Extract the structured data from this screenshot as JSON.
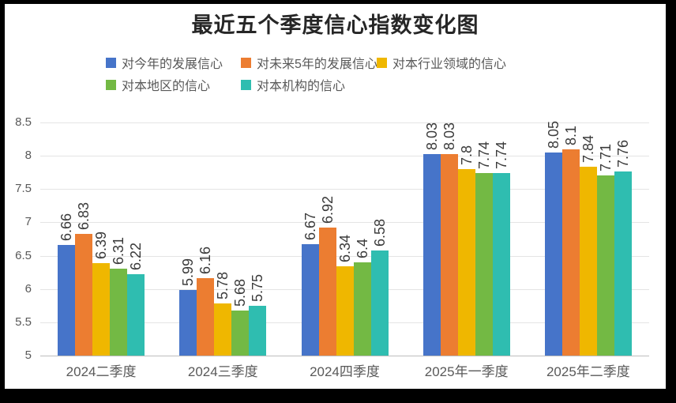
{
  "chart_data": {
    "type": "bar",
    "title": "最近五个季度信心指数变化图",
    "categories": [
      "2024二季度",
      "2024三季度",
      "2024四季度",
      "2025年一季度",
      "2025年二季度"
    ],
    "series": [
      {
        "name": "对今年的发展信心",
        "color": "#4674c9",
        "values": [
          6.66,
          5.99,
          6.67,
          8.03,
          8.05
        ]
      },
      {
        "name": "对未来5年的发展信心",
        "color": "#ec7d31",
        "values": [
          6.83,
          6.16,
          6.92,
          8.03,
          8.1
        ]
      },
      {
        "name": "对本行业领域的信心",
        "color": "#efb700",
        "values": [
          6.39,
          5.78,
          6.34,
          7.8,
          7.84
        ]
      },
      {
        "name": "对本地区的信心",
        "color": "#73b944",
        "values": [
          6.31,
          5.68,
          6.4,
          7.74,
          7.71
        ]
      },
      {
        "name": "对本机构的信心",
        "color": "#2fbdb0",
        "values": [
          6.22,
          5.75,
          6.58,
          7.74,
          7.76
        ]
      }
    ],
    "y_axis": {
      "min": 5,
      "max": 8.5,
      "step": 0.5,
      "tick_labels": [
        "5",
        "5.5",
        "6",
        "6.5",
        "7",
        "7.5",
        "8",
        "8.5"
      ]
    },
    "grid": true,
    "legend_position": "top",
    "legend_rows": [
      [
        0,
        1,
        2
      ],
      [
        3,
        4
      ]
    ],
    "data_label_rotation": -90
  },
  "colors": {
    "frame": "#000000",
    "chart_background": "#ffffff",
    "gridline": "#e4e4e4",
    "axis_line": "#bdbdbd",
    "tick_label": "#595959",
    "category_label": "#595959",
    "legend_text": "#595959",
    "data_label": "#3a3a3a",
    "title_text": "#262626"
  }
}
